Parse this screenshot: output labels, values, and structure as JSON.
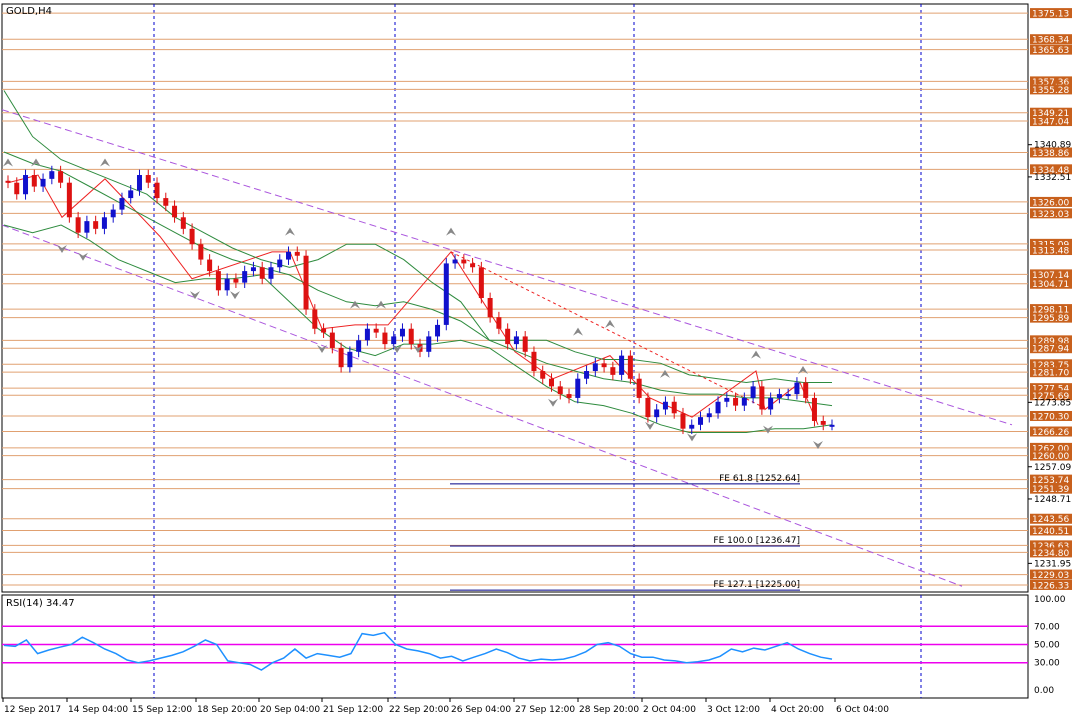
{
  "header": {
    "symbol": "GOLD,H4",
    "rsi_label": "RSI(14) 34.47"
  },
  "chart_data": {
    "type": "candlestick",
    "symbol": "GOLD",
    "timeframe": "H4",
    "price_range": [
      1224.5,
      1377.5
    ],
    "price_ticks": [
      "1340.89",
      "1332.51",
      "1273.85",
      "1257.09",
      "1248.71",
      "1231.95"
    ],
    "levels": [
      1375.13,
      1368.34,
      1365.63,
      1357.36,
      1355.28,
      1349.21,
      1347.04,
      1338.86,
      1334.48,
      1326.0,
      1323.03,
      1315.09,
      1313.48,
      1307.14,
      1304.71,
      1298.11,
      1295.89,
      1289.98,
      1287.94,
      1283.75,
      1281.7,
      1277.54,
      1275.69,
      1270.3,
      1266.26,
      1262.0,
      1260.0,
      1253.74,
      1251.39,
      1243.56,
      1240.51,
      1236.63,
      1234.8,
      1229.03,
      1226.33
    ],
    "level_labels": [
      "1375.13",
      "1368.34",
      "1365.63",
      "1357.36",
      "1355.28",
      "1349.21",
      "1347.04",
      "1338.86",
      "1334.48",
      "1326.00",
      "1323.03",
      "1315.09",
      "1313.48",
      "1307.14",
      "1304.71",
      "1298.11",
      "1295.89",
      "1289.98",
      "1287.94",
      "1283.75",
      "1281.70",
      "1277.54",
      "1275.69",
      "1270.30",
      "1266.26",
      "1262.00",
      "1260.00",
      "1253.74",
      "1251.39",
      "1243.56",
      "1240.51",
      "1236.63",
      "1234.80",
      "1229.03",
      "1226.33"
    ],
    "fe_levels": [
      {
        "label": "FE 61.8 [1252.64]",
        "value": 1252.64
      },
      {
        "label": "FE 100.0 [1236.47]",
        "value": 1236.47
      },
      {
        "label": "FE 127.1 [1225.00]",
        "value": 1225.0
      }
    ],
    "x_labels": [
      "12 Sep 2017",
      "14 Sep 04:00",
      "15 Sep 12:00",
      "18 Sep 20:00",
      "20 Sep 04:00",
      "21 Sep 12:00",
      "22 Sep 20:00",
      "26 Sep 04:00",
      "27 Sep 12:00",
      "28 Sep 20:00",
      "2 Oct 04:00",
      "3 Oct 12:00",
      "4 Oct 20:00",
      "6 Oct 04:00"
    ],
    "close": [
      1331,
      1328,
      1333,
      1330,
      1332,
      1334,
      1331,
      1322,
      1318,
      1321,
      1319,
      1322,
      1324,
      1327,
      1329,
      1333,
      1331,
      1327,
      1325,
      1322,
      1319,
      1315,
      1311,
      1308,
      1303,
      1306,
      1305,
      1308,
      1309,
      1306,
      1309,
      1311,
      1313,
      1312,
      1298,
      1293,
      1292,
      1288,
      1283,
      1287,
      1290,
      1293,
      1292,
      1289,
      1291,
      1293,
      1289,
      1287,
      1291,
      1294,
      1310,
      1311,
      1310,
      1309,
      1301,
      1296,
      1293,
      1289,
      1291,
      1287,
      1282,
      1280,
      1278,
      1276,
      1275,
      1280,
      1282,
      1284,
      1283,
      1281,
      1286,
      1280,
      1275,
      1270,
      1272,
      1274,
      1271,
      1267,
      1268,
      1270,
      1271,
      1274,
      1275,
      1273,
      1275,
      1278,
      1272,
      1275,
      1276,
      1276,
      1279,
      1275,
      1269,
      1268,
      1268
    ],
    "bollinger": {
      "upper": [
        1355,
        1343,
        1337,
        1334,
        1331,
        1328,
        1322,
        1318,
        1314,
        1311,
        1309,
        1311,
        1315,
        1315,
        1311,
        1305,
        1300,
        1290,
        1290,
        1290,
        1287,
        1285,
        1285,
        1284,
        1281,
        1280,
        1279,
        1280,
        1279,
        1279
      ],
      "middle": [
        1339,
        1336,
        1334,
        1330,
        1326,
        1322,
        1318,
        1314,
        1311,
        1309,
        1307,
        1303,
        1300,
        1299,
        1300,
        1298,
        1295,
        1290,
        1287,
        1284,
        1282,
        1280,
        1279,
        1277,
        1276,
        1276,
        1275,
        1275,
        1274,
        1273
      ],
      "lower": [
        1320,
        1318,
        1320,
        1316,
        1311,
        1308,
        1305,
        1306,
        1306,
        1307,
        1300,
        1293,
        1288,
        1286,
        1289,
        1289,
        1290,
        1288,
        1283,
        1278,
        1274,
        1273,
        1271,
        1268,
        1266,
        1266,
        1266,
        1267,
        1267,
        1268
      ]
    },
    "rsi": {
      "name": "RSI(14)",
      "last": 34.47,
      "range": [
        0,
        100
      ],
      "ticks": [
        "100.00",
        "70.00",
        "50.00",
        "30.00",
        "0.00"
      ],
      "levels": [
        70,
        50,
        30
      ],
      "values": [
        49,
        48,
        55,
        40,
        44,
        47,
        50,
        58,
        52,
        45,
        40,
        33,
        30,
        32,
        35,
        38,
        42,
        48,
        55,
        50,
        32,
        30,
        28,
        22,
        30,
        35,
        45,
        35,
        40,
        38,
        36,
        40,
        62,
        60,
        63,
        50,
        45,
        43,
        40,
        35,
        37,
        32,
        36,
        40,
        45,
        41,
        35,
        32,
        34,
        33,
        34,
        37,
        42,
        50,
        52,
        48,
        40,
        36,
        36,
        33,
        32,
        30,
        31,
        33,
        37,
        45,
        42,
        46,
        44,
        48,
        52,
        45,
        40,
        36,
        34
      ]
    },
    "colors": {
      "up": "#1111cc",
      "down": "#dd1111",
      "level_line": "#e0a070",
      "level_label_bg": "#c8601c",
      "channel": "#aa55dd",
      "bands": "#2e8b3e",
      "fe": "#000088",
      "rsi_line": "#1e90ff",
      "rsi_level": "#ee00ee",
      "grid": "#0000cc"
    }
  }
}
